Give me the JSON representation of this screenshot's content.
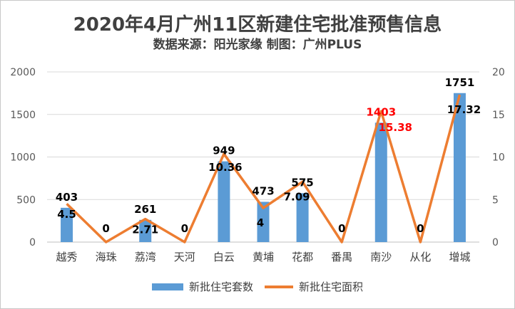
{
  "chart_data": {
    "type": "bar",
    "title": "2020年4月广州11区新建住宅批准预售信息",
    "subtitle": "数据来源：阳光家缘    制图：广州PLUS",
    "categories": [
      "越秀",
      "海珠",
      "荔湾",
      "天河",
      "白云",
      "黄埔",
      "花都",
      "番禺",
      "南沙",
      "从化",
      "增城"
    ],
    "series": [
      {
        "name": "新批住宅套数",
        "type": "bar",
        "axis": "left",
        "color": "#5b9bd5",
        "values": [
          403,
          0,
          261,
          0,
          949,
          473,
          575,
          0,
          1403,
          0,
          1751
        ],
        "labels": [
          "403",
          "0",
          "261",
          "0",
          "949",
          "473",
          "575",
          "0",
          "1403",
          "0",
          "1751"
        ],
        "label_colors": [
          "#000000",
          "#000000",
          "#000000",
          "#000000",
          "#000000",
          "#000000",
          "#000000",
          "#000000",
          "#ff0000",
          "#000000",
          "#000000"
        ]
      },
      {
        "name": "新批住宅面积",
        "type": "line",
        "axis": "right",
        "color": "#ed7d31",
        "values": [
          4.5,
          0,
          2.71,
          0,
          10.36,
          4,
          7.09,
          0,
          15.38,
          0,
          17.32
        ],
        "labels": [
          "4.5",
          "",
          "2.71",
          "",
          "10.36",
          "4",
          "7.09",
          "",
          "15.38",
          "",
          "17.32"
        ],
        "label_colors": [
          "#000000",
          "#000000",
          "#000000",
          "#000000",
          "#000000",
          "#000000",
          "#000000",
          "#000000",
          "#ff0000",
          "#000000",
          "#000000"
        ]
      }
    ],
    "y_left": {
      "ylim": [
        0,
        2000
      ],
      "ticks": [
        "0",
        "500",
        "1000",
        "1500",
        "2000"
      ]
    },
    "y_right": {
      "ylim": [
        0,
        20
      ],
      "ticks": [
        "0",
        "5",
        "10",
        "15",
        "20"
      ]
    },
    "grid": true,
    "legend_position": "bottom"
  }
}
